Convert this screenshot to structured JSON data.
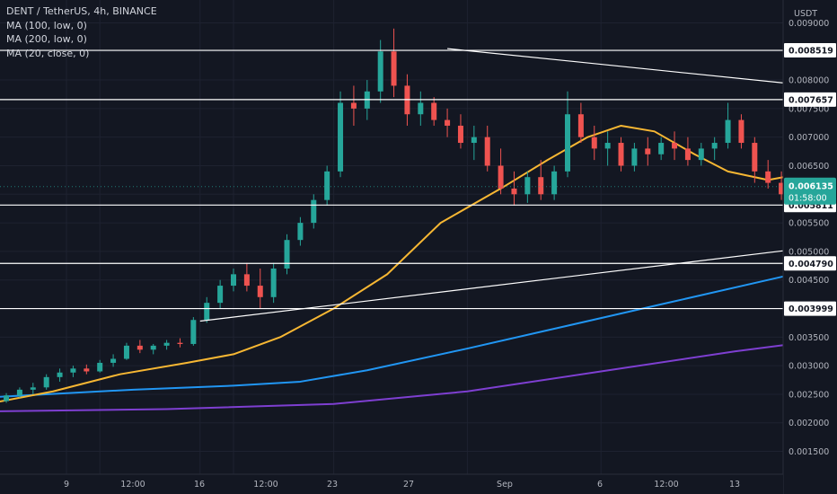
{
  "legend": {
    "symbol_line": "DENT / TetherUS, 4h, BINANCE",
    "ma1": "MA (100, low, 0)",
    "ma2": "MA (200, low, 0)",
    "ma3": "MA (20, close, 0)"
  },
  "price_axis": {
    "currency": "USDT",
    "ticks": [
      "0.009000",
      "0.008500",
      "0.008000",
      "0.007500",
      "0.007000",
      "0.006500",
      "0.006000",
      "0.005500",
      "0.005000",
      "0.004500",
      "0.004000",
      "0.003500",
      "0.003000",
      "0.002500",
      "0.002000",
      "0.001500"
    ],
    "levels": [
      "0.008519",
      "0.007657",
      "0.005811",
      "0.004790",
      "0.003999"
    ],
    "last_price": "0.006135",
    "countdown": "01:58:00"
  },
  "time_axis": {
    "ticks": [
      "9",
      "12:00",
      "16",
      "12:00",
      "23",
      "27",
      "Sep",
      "6",
      "12:00",
      "13"
    ]
  },
  "colors": {
    "background": "#131722",
    "up": "#26a69a",
    "down": "#ef5350",
    "ma100": "#2196f3",
    "ma200": "#7e3fd1",
    "ma20": "#f7b733",
    "lines": "#ffffff",
    "last_price_badge": "#26a69a"
  },
  "chart_data": {
    "type": "candlestick",
    "symbol": "DENT / TetherUS",
    "interval": "4h",
    "exchange": "BINANCE",
    "ylim": [
      0.0011,
      0.0094
    ],
    "horizontal_levels": [
      0.008519,
      0.007657,
      0.005811,
      0.00479,
      0.003999
    ],
    "last_price": 0.006135,
    "triangle": {
      "upper": [
        [
          13.7,
          0.00855
        ],
        [
          30.0,
          0.0066
        ]
      ],
      "lower": [
        [
          10.0,
          0.00378
        ],
        [
          30.0,
          0.0066
        ]
      ]
    },
    "ma100_low": [
      [
        6.9,
        0.00245
      ],
      [
        9.0,
        0.00258
      ],
      [
        10.5,
        0.00265
      ],
      [
        11.5,
        0.00272
      ],
      [
        12.5,
        0.00292
      ],
      [
        14.0,
        0.0033
      ],
      [
        15.5,
        0.0037
      ],
      [
        17.0,
        0.0041
      ],
      [
        18.5,
        0.0045
      ],
      [
        20.0,
        0.0049
      ],
      [
        21.5,
        0.0052
      ],
      [
        23.0,
        0.0055
      ],
      [
        24.5,
        0.0058
      ],
      [
        25.5,
        0.006
      ],
      [
        26.5,
        0.0062
      ],
      [
        27.5,
        0.00635
      ],
      [
        28.5,
        0.00645
      ],
      [
        29.2,
        0.0065
      ]
    ],
    "ma200_low": [
      [
        6.9,
        0.0022
      ],
      [
        9.5,
        0.00224
      ],
      [
        12.0,
        0.00233
      ],
      [
        14.0,
        0.00255
      ],
      [
        16.0,
        0.0029
      ],
      [
        18.0,
        0.00325
      ],
      [
        20.0,
        0.00355
      ],
      [
        22.0,
        0.00385
      ],
      [
        24.0,
        0.0041
      ],
      [
        26.0,
        0.00435
      ],
      [
        27.5,
        0.00455
      ],
      [
        29.0,
        0.0047
      ]
    ],
    "ma20_close": [
      [
        6.9,
        0.00235
      ],
      [
        7.8,
        0.00255
      ],
      [
        8.8,
        0.00285
      ],
      [
        9.8,
        0.00305
      ],
      [
        10.5,
        0.0032
      ],
      [
        11.2,
        0.0035
      ],
      [
        12.0,
        0.004
      ],
      [
        12.8,
        0.0046
      ],
      [
        13.6,
        0.0055
      ],
      [
        14.5,
        0.0061
      ],
      [
        15.2,
        0.0066
      ],
      [
        15.8,
        0.007
      ],
      [
        16.3,
        0.0072
      ],
      [
        16.8,
        0.0071
      ],
      [
        17.4,
        0.0067
      ],
      [
        17.9,
        0.0064
      ],
      [
        18.5,
        0.00625
      ],
      [
        19.2,
        0.0064
      ],
      [
        20.0,
        0.00655
      ],
      [
        20.8,
        0.00668
      ],
      [
        21.6,
        0.0068
      ],
      [
        22.3,
        0.0069
      ],
      [
        23.0,
        0.0069
      ],
      [
        23.7,
        0.0068
      ],
      [
        24.4,
        0.0065
      ],
      [
        25.1,
        0.0063
      ],
      [
        25.8,
        0.0062
      ],
      [
        26.4,
        0.00615
      ],
      [
        27.0,
        0.00613
      ],
      [
        27.6,
        0.00612
      ],
      [
        28.2,
        0.00615
      ],
      [
        28.6,
        0.00612
      ]
    ],
    "candles_approx": [
      [
        6.9,
        0.0023,
        0.0024,
        0.00225,
        0.00238
      ],
      [
        7.1,
        0.00238,
        0.00252,
        0.00235,
        0.00248
      ],
      [
        7.3,
        0.00248,
        0.00262,
        0.00244,
        0.00258
      ],
      [
        7.5,
        0.00258,
        0.0027,
        0.0025,
        0.00262
      ],
      [
        7.7,
        0.00262,
        0.00285,
        0.00258,
        0.0028
      ],
      [
        7.9,
        0.0028,
        0.00295,
        0.00272,
        0.00288
      ],
      [
        8.1,
        0.00288,
        0.003,
        0.0028,
        0.00295
      ],
      [
        8.3,
        0.00295,
        0.00302,
        0.00285,
        0.0029
      ],
      [
        8.5,
        0.0029,
        0.0031,
        0.00288,
        0.00305
      ],
      [
        8.7,
        0.00305,
        0.0032,
        0.00298,
        0.00312
      ],
      [
        8.9,
        0.00312,
        0.0034,
        0.0031,
        0.00335
      ],
      [
        9.1,
        0.00335,
        0.00345,
        0.00322,
        0.00328
      ],
      [
        9.3,
        0.00328,
        0.00338,
        0.0032,
        0.00335
      ],
      [
        9.5,
        0.00335,
        0.00345,
        0.00328,
        0.0034
      ],
      [
        9.7,
        0.0034,
        0.00348,
        0.00332,
        0.00338
      ],
      [
        9.9,
        0.00338,
        0.00385,
        0.00335,
        0.0038
      ],
      [
        10.1,
        0.0038,
        0.0042,
        0.00375,
        0.0041
      ],
      [
        10.3,
        0.0041,
        0.0045,
        0.004,
        0.0044
      ],
      [
        10.5,
        0.0044,
        0.0047,
        0.0043,
        0.0046
      ],
      [
        10.7,
        0.0046,
        0.0048,
        0.0043,
        0.0044
      ],
      [
        10.9,
        0.0044,
        0.0047,
        0.004,
        0.0042
      ],
      [
        11.1,
        0.0042,
        0.0048,
        0.0041,
        0.0047
      ],
      [
        11.3,
        0.0047,
        0.0053,
        0.0046,
        0.0052
      ],
      [
        11.5,
        0.0052,
        0.0056,
        0.0051,
        0.0055
      ],
      [
        11.7,
        0.0055,
        0.006,
        0.0054,
        0.0059
      ],
      [
        11.9,
        0.0059,
        0.0065,
        0.0058,
        0.0064
      ],
      [
        12.1,
        0.0064,
        0.0078,
        0.0063,
        0.0076
      ],
      [
        12.3,
        0.0076,
        0.0079,
        0.0072,
        0.0075
      ],
      [
        12.5,
        0.0075,
        0.008,
        0.0073,
        0.0078
      ],
      [
        12.7,
        0.0078,
        0.0087,
        0.0076,
        0.0085
      ],
      [
        12.9,
        0.0085,
        0.0089,
        0.0077,
        0.0079
      ],
      [
        13.1,
        0.0079,
        0.0081,
        0.0072,
        0.0074
      ],
      [
        13.3,
        0.0074,
        0.0078,
        0.0072,
        0.0076
      ],
      [
        13.5,
        0.0076,
        0.0077,
        0.0072,
        0.0073
      ],
      [
        13.7,
        0.0073,
        0.0075,
        0.007,
        0.0072
      ],
      [
        13.9,
        0.0072,
        0.0074,
        0.0068,
        0.0069
      ],
      [
        14.1,
        0.0069,
        0.0072,
        0.0066,
        0.007
      ],
      [
        14.3,
        0.007,
        0.0072,
        0.0064,
        0.0065
      ],
      [
        14.5,
        0.0065,
        0.0068,
        0.006,
        0.0061
      ],
      [
        14.7,
        0.0061,
        0.0064,
        0.0058,
        0.006
      ],
      [
        14.9,
        0.006,
        0.0064,
        0.00585,
        0.0063
      ],
      [
        15.1,
        0.0063,
        0.0066,
        0.0059,
        0.006
      ],
      [
        15.3,
        0.006,
        0.0065,
        0.0059,
        0.0064
      ],
      [
        15.5,
        0.0064,
        0.0078,
        0.0063,
        0.0074
      ],
      [
        15.7,
        0.0074,
        0.0076,
        0.0069,
        0.007
      ],
      [
        15.9,
        0.007,
        0.0072,
        0.0066,
        0.0068
      ],
      [
        16.1,
        0.0068,
        0.0071,
        0.0065,
        0.0069
      ],
      [
        16.3,
        0.0069,
        0.007,
        0.0064,
        0.0065
      ],
      [
        16.5,
        0.0065,
        0.0069,
        0.0064,
        0.0068
      ],
      [
        16.7,
        0.0068,
        0.007,
        0.0065,
        0.0067
      ],
      [
        16.9,
        0.0067,
        0.007,
        0.0066,
        0.0069
      ],
      [
        17.1,
        0.0069,
        0.0071,
        0.0066,
        0.0068
      ],
      [
        17.3,
        0.0068,
        0.007,
        0.0065,
        0.0066
      ],
      [
        17.5,
        0.0066,
        0.0069,
        0.0065,
        0.0068
      ],
      [
        17.7,
        0.0068,
        0.007,
        0.0066,
        0.0069
      ],
      [
        17.9,
        0.0069,
        0.0076,
        0.0068,
        0.0073
      ],
      [
        18.1,
        0.0073,
        0.0074,
        0.0068,
        0.0069
      ],
      [
        18.3,
        0.0069,
        0.007,
        0.0062,
        0.0064
      ],
      [
        18.5,
        0.0064,
        0.0066,
        0.0061,
        0.0062
      ],
      [
        18.7,
        0.0062,
        0.0064,
        0.0059,
        0.006
      ],
      [
        18.9,
        0.006,
        0.0063,
        0.0058,
        0.0062
      ],
      [
        19.1,
        0.0062,
        0.0064,
        0.0057,
        0.0059
      ],
      [
        19.3,
        0.0059,
        0.0062,
        0.0056,
        0.006
      ],
      [
        19.5,
        0.006,
        0.0064,
        0.0059,
        0.0063
      ],
      [
        19.7,
        0.0063,
        0.0065,
        0.0061,
        0.0062
      ],
      [
        19.9,
        0.0062,
        0.0065,
        0.0061,
        0.0064
      ],
      [
        20.1,
        0.0064,
        0.0065,
        0.0061,
        0.0062
      ],
      [
        20.3,
        0.0062,
        0.0064,
        0.006,
        0.00625
      ],
      [
        20.5,
        0.00625,
        0.0063,
        0.00605,
        0.0061
      ],
      [
        20.7,
        0.0061,
        0.0063,
        0.006,
        0.0062
      ],
      [
        20.9,
        0.0062,
        0.00625,
        0.00605,
        0.00612
      ],
      [
        21.1,
        0.00612,
        0.0062,
        0.006,
        0.00615
      ]
    ]
  }
}
